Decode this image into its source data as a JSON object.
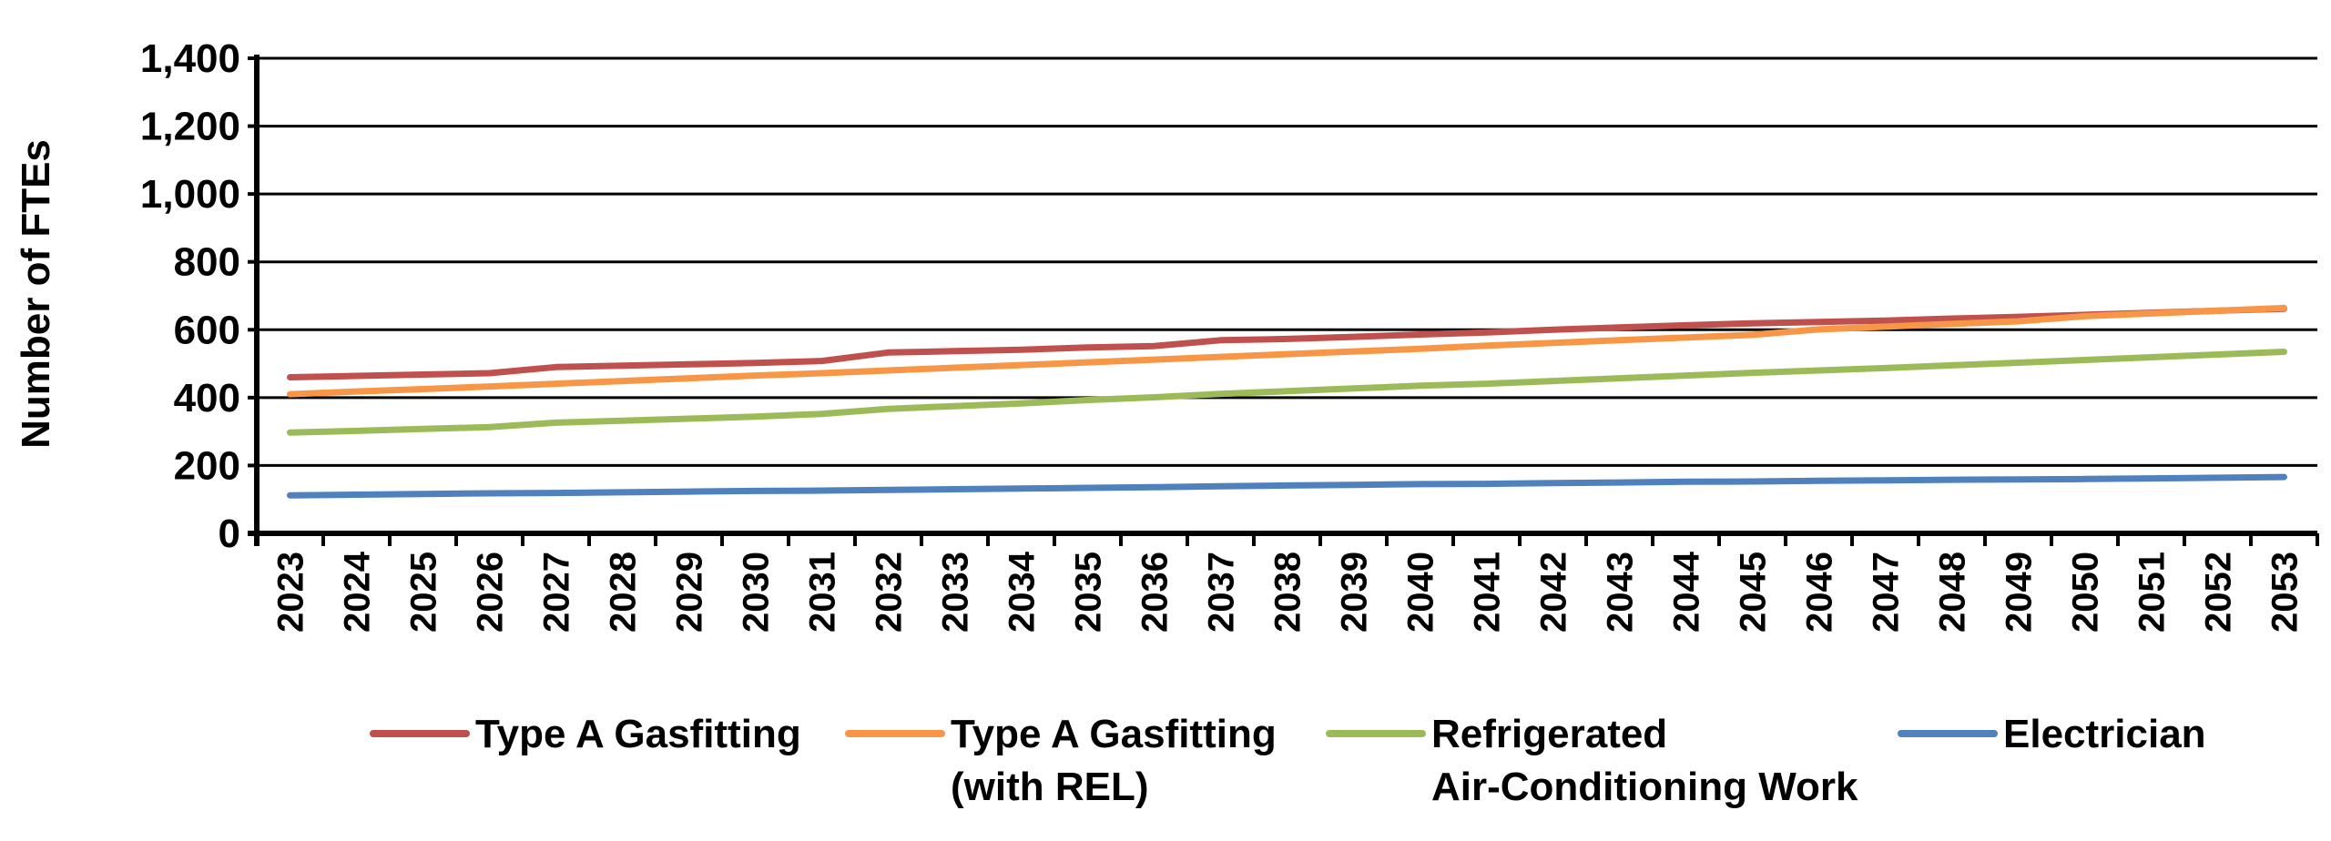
{
  "chart_data": {
    "type": "line",
    "ylabel": "Number of FTEs",
    "xlabel": "",
    "ylim": [
      0,
      1400
    ],
    "yticks": [
      "0",
      "200",
      "400",
      "600",
      "800",
      "1,000",
      "1,200",
      "1,400"
    ],
    "x": [
      "2023",
      "2024",
      "2025",
      "2026",
      "2027",
      "2028",
      "2029",
      "2030",
      "2031",
      "2032",
      "2033",
      "2034",
      "2035",
      "2036",
      "2037",
      "2038",
      "2039",
      "2040",
      "2041",
      "2042",
      "2043",
      "2044",
      "2045",
      "2046",
      "2047",
      "2048",
      "2049",
      "2050",
      "2051",
      "2052",
      "2053"
    ],
    "grid": true,
    "legend_position": "bottom",
    "series": [
      {
        "name": "Type A Gasfitting",
        "legend_lines": [
          "Type A Gasfitting"
        ],
        "color": "#c0504d",
        "values": [
          460,
          464,
          468,
          472,
          490,
          494,
          498,
          502,
          508,
          533,
          537,
          541,
          548,
          552,
          569,
          573,
          579,
          586,
          592,
          600,
          607,
          613,
          619,
          623,
          627,
          633,
          638,
          644,
          650,
          656,
          662
        ]
      },
      {
        "name": "Type A Gasfitting (with REL)",
        "legend_lines": [
          "Type A Gasfitting",
          "(with REL)"
        ],
        "color": "#f79646",
        "values": [
          410,
          418,
          425,
          433,
          441,
          449,
          457,
          465,
          472,
          480,
          488,
          496,
          504,
          512,
          520,
          528,
          536,
          544,
          553,
          561,
          569,
          577,
          585,
          601,
          609,
          617,
          625,
          640,
          648,
          656,
          664
        ]
      },
      {
        "name": "Refrigerated Air-Conditioning Work",
        "legend_lines": [
          "Refrigerated",
          "Air-Conditioning Work"
        ],
        "color": "#9bbb59",
        "values": [
          297,
          302,
          308,
          313,
          326,
          332,
          338,
          344,
          352,
          367,
          375,
          383,
          393,
          401,
          411,
          419,
          427,
          435,
          441,
          449,
          457,
          465,
          473,
          480,
          487,
          495,
          503,
          511,
          519,
          527,
          535
        ]
      },
      {
        "name": "Electrician",
        "legend_lines": [
          "Electrician"
        ],
        "color": "#4f81bd",
        "values": [
          112,
          114,
          116,
          118,
          119,
          121,
          123,
          125,
          126,
          128,
          130,
          132,
          134,
          136,
          139,
          141,
          143,
          145,
          146,
          148,
          150,
          152,
          153,
          155,
          156,
          158,
          159,
          160,
          162,
          164,
          166
        ]
      }
    ]
  }
}
